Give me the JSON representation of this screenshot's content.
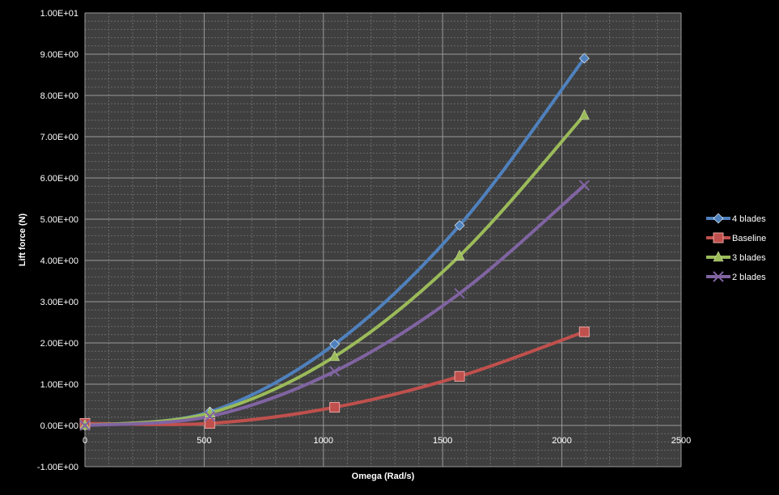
{
  "chart_data": {
    "type": "line",
    "title": "",
    "xlabel": "Omega (Rad/s)",
    "ylabel": "Lift force (N)",
    "xlim": [
      0,
      2500
    ],
    "ylim": [
      -1,
      10
    ],
    "x_ticks": [
      "0",
      "500",
      "1000",
      "1500",
      "2000",
      "2500"
    ],
    "y_ticks": [
      "-1.00E+00",
      "0.00E+00",
      "1.00E+00",
      "2.00E+00",
      "3.00E+00",
      "4.00E+00",
      "5.00E+00",
      "6.00E+00",
      "7.00E+00",
      "8.00E+00",
      "9.00E+00",
      "1.00E+01"
    ],
    "grid": true,
    "legend_position": "right",
    "smooth": true,
    "x": [
      0,
      524,
      1047,
      1571,
      2094
    ],
    "series": [
      {
        "name": "4 blades",
        "color": "#4f81bd",
        "marker": "diamond",
        "values": [
          0,
          0.33,
          1.97,
          4.85,
          8.9
        ]
      },
      {
        "name": "Baseline",
        "color": "#c0504d",
        "marker": "square",
        "values": [
          0.05,
          0.05,
          0.44,
          1.19,
          2.27
        ]
      },
      {
        "name": "3 blades",
        "color": "#9bbb59",
        "marker": "triangle",
        "values": [
          0,
          0.3,
          1.67,
          4.11,
          7.52
        ]
      },
      {
        "name": "2 blades",
        "color": "#8064a2",
        "marker": "x",
        "values": [
          0,
          0.22,
          1.31,
          3.2,
          5.82
        ]
      }
    ]
  }
}
